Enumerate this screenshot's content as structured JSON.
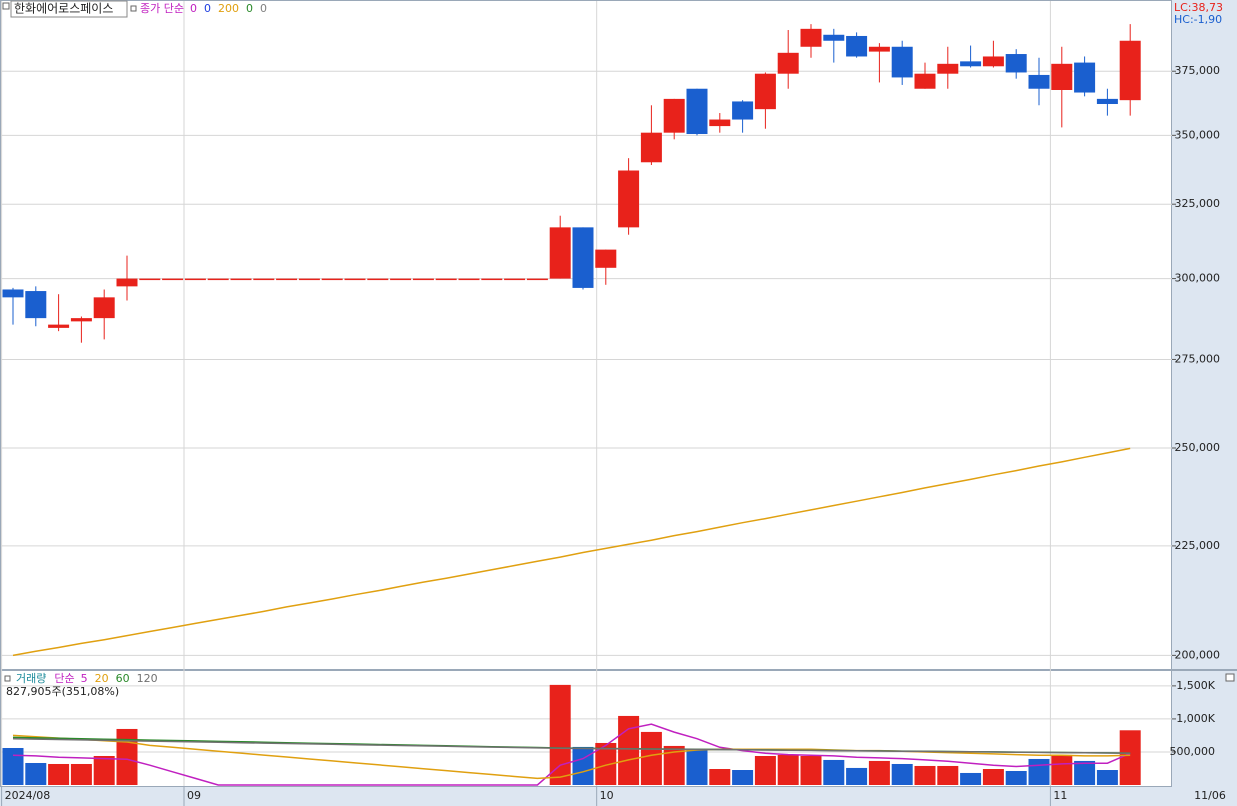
{
  "chart_data": [
    {
      "type": "candlestick",
      "title": "한화에어로스페이스",
      "indicator_label": "종가 단순",
      "ma_legend": [
        {
          "period": 0,
          "color": "#c020c0"
        },
        {
          "period": 0,
          "color": "#2040e0"
        },
        {
          "period": 200,
          "color": "#e0a010",
          "values": [
            200000,
            200900,
            201700,
            202600,
            203400,
            204300,
            205200,
            206100,
            207000,
            207900,
            208800,
            209700,
            210700,
            211600,
            212500,
            213500,
            214400,
            215400,
            216400,
            217300,
            218300,
            219300,
            220300,
            221300,
            222300,
            223400,
            224400,
            225400,
            226400,
            227500,
            228500,
            229600,
            230700,
            231700,
            232800,
            233900,
            235000,
            236100,
            237200,
            238300,
            239500,
            240600,
            241700,
            242900,
            244000,
            245200,
            246300,
            247500,
            248700,
            249900
          ]
        },
        {
          "period": 0,
          "color": "#2a8a2a"
        },
        {
          "period": 0,
          "color": "#808080"
        }
      ],
      "lc_label": "LC:38,73",
      "hc_label": "HC:-1,90",
      "last_date_label": "11/06",
      "open": [
        296500,
        296000,
        284500,
        286500,
        287500,
        297500,
        300000,
        300000,
        300000,
        300000,
        300000,
        300000,
        300000,
        300000,
        300000,
        300000,
        300000,
        300000,
        300000,
        300000,
        300000,
        300000,
        300000,
        300000,
        300000,
        317000,
        303500,
        317000,
        340000,
        351000,
        368000,
        353500,
        363000,
        360000,
        374000,
        385000,
        390000,
        389500,
        383000,
        385000,
        368000,
        374000,
        379000,
        377000,
        382000,
        373500,
        367500,
        378500,
        364000,
        363500
      ],
      "high": [
        297000,
        297500,
        295000,
        288000,
        296500,
        307500,
        300000,
        300000,
        300000,
        300000,
        300000,
        300000,
        300000,
        300000,
        300000,
        300000,
        300000,
        300000,
        300000,
        300000,
        300000,
        300000,
        300000,
        300000,
        321000,
        317000,
        309500,
        341500,
        361500,
        364000,
        368000,
        358500,
        363500,
        374500,
        392000,
        394500,
        392500,
        391000,
        386500,
        387500,
        378500,
        385000,
        385500,
        387500,
        384000,
        380500,
        385000,
        381000,
        368000,
        394500
      ],
      "low": [
        285500,
        285000,
        283500,
        280000,
        281000,
        293000,
        300000,
        300000,
        300000,
        300000,
        300000,
        300000,
        300000,
        300000,
        300000,
        300000,
        300000,
        300000,
        300000,
        300000,
        300000,
        300000,
        300000,
        300000,
        300000,
        296500,
        298000,
        314500,
        339000,
        348500,
        350000,
        351000,
        351000,
        352500,
        368000,
        380500,
        378500,
        380500,
        370500,
        369500,
        368000,
        368000,
        376500,
        376500,
        372000,
        361500,
        353000,
        365000,
        357500,
        357500
      ],
      "close": [
        294000,
        287500,
        285500,
        287500,
        294000,
        300000,
        300000,
        300000,
        300000,
        300000,
        300000,
        300000,
        300000,
        300000,
        300000,
        300000,
        300000,
        300000,
        300000,
        300000,
        300000,
        300000,
        300000,
        300000,
        317000,
        297000,
        309500,
        337000,
        351000,
        364000,
        350500,
        356000,
        356000,
        374000,
        382500,
        392500,
        387500,
        381000,
        385000,
        372500,
        374000,
        378000,
        377000,
        381000,
        374500,
        368000,
        378000,
        366500,
        362000,
        387500
      ],
      "log_scale": true,
      "ylim": [
        197300,
        404000
      ],
      "yticks": [
        {
          "value": 200000,
          "label": "200,000"
        },
        {
          "value": 225000,
          "label": "225,000"
        },
        {
          "value": 250000,
          "label": "250,000"
        },
        {
          "value": 275000,
          "label": "275,000"
        },
        {
          "value": 300000,
          "label": "300,000"
        },
        {
          "value": 325000,
          "label": "325,000"
        },
        {
          "value": 350000,
          "label": "350,000"
        },
        {
          "value": 375000,
          "label": "375,000"
        }
      ],
      "xticks": [
        {
          "value": -0.5,
          "label": "2024/08"
        },
        {
          "value": 7.5,
          "label": "09"
        },
        {
          "value": 25.6,
          "label": "10"
        },
        {
          "value": 45.5,
          "label": "11"
        }
      ],
      "up_color": "#e8221b",
      "down_color": "#1a5fcf",
      "grid": true
    },
    {
      "type": "volume_bar",
      "title": "거래량",
      "ma_label": "단순",
      "ma_legend": [
        {
          "period": 5,
          "color": "#c020c0",
          "values": [
            450000,
            440000,
            420000,
            410000,
            400000,
            390000,
            300000,
            200000,
            100000,
            0,
            0,
            0,
            0,
            0,
            0,
            0,
            0,
            0,
            0,
            0,
            0,
            0,
            0,
            0,
            300000,
            400000,
            600000,
            850000,
            920000,
            800000,
            700000,
            570000,
            520000,
            480000,
            460000,
            450000,
            440000,
            420000,
            410000,
            400000,
            380000,
            360000,
            330000,
            300000,
            280000,
            300000,
            320000,
            330000,
            330000,
            480000
          ]
        },
        {
          "period": 20,
          "color": "#e0a010",
          "values": [
            750000,
            730000,
            710000,
            690000,
            670000,
            650000,
            600000,
            571000,
            541000,
            512000,
            482000,
            453000,
            424000,
            394000,
            365000,
            335000,
            306000,
            276000,
            247000,
            218000,
            188000,
            159000,
            129000,
            100000,
            120000,
            200000,
            300000,
            380000,
            450000,
            500000,
            530000,
            540000,
            540000,
            540000,
            540000,
            540000,
            530000,
            520000,
            520000,
            510000,
            500000,
            490000,
            480000,
            470000,
            460000,
            450000,
            450000,
            440000,
            440000,
            450000
          ]
        },
        {
          "period": 60,
          "color": "#2a8a2a",
          "values": [
            720000,
            713000,
            707000,
            700000,
            693000,
            687000,
            680000,
            673000,
            667000,
            660000,
            653000,
            647000,
            640000,
            633000,
            627000,
            620000,
            613000,
            607000,
            600000,
            593000,
            587000,
            580000,
            573000,
            567000,
            560000,
            555000,
            552000,
            549000,
            546000,
            543000,
            540000,
            537000,
            534000,
            531000,
            528000,
            525000,
            522000,
            519000,
            516000,
            513000,
            510000,
            507000,
            504000,
            501000,
            498000,
            495000,
            492000,
            489000,
            486000,
            483000
          ]
        },
        {
          "period": 120,
          "color": "#707070",
          "values": [
            700000,
            694000,
            688000,
            682000,
            676000,
            670000,
            664000,
            658000,
            652000,
            646000,
            640000,
            634000,
            628000,
            622000,
            616000,
            610000,
            604000,
            598000,
            592000,
            586000,
            580000,
            574000,
            568000,
            562000,
            556000,
            553000,
            550000,
            547000,
            544000,
            541000,
            538000,
            535000,
            532000,
            529000,
            526000,
            523000,
            520000,
            517000,
            514000,
            511000,
            508000,
            505000,
            502000,
            499000,
            496000,
            493000,
            490000,
            487000,
            484000,
            481000
          ]
        }
      ],
      "title_color": "#1a8a9a",
      "last_volume_label": "827,905주(351,08%)",
      "values": [
        560000,
        333000,
        318000,
        318000,
        439000,
        848000,
        0,
        0,
        0,
        0,
        0,
        0,
        0,
        0,
        0,
        0,
        0,
        0,
        0,
        0,
        0,
        0,
        0,
        0,
        1515000,
        576000,
        636000,
        1045000,
        803000,
        591000,
        545000,
        242000,
        227000,
        439000,
        455000,
        439000,
        379000,
        258000,
        364000,
        318000,
        288000,
        288000,
        182000,
        242000,
        212000,
        394000,
        455000,
        364000,
        227000,
        827905
      ],
      "ylim": [
        0,
        1710000
      ],
      "yticks": [
        {
          "value": 500000,
          "label": "500,000"
        },
        {
          "value": 1000000,
          "label": "1,000K"
        },
        {
          "value": 1500000,
          "label": "1,500K"
        }
      ],
      "grid": true
    }
  ]
}
